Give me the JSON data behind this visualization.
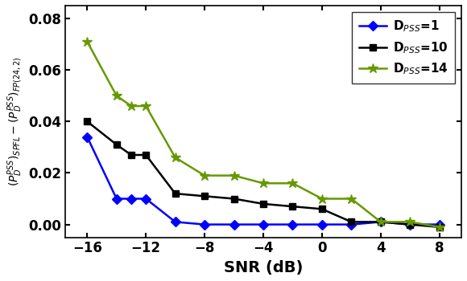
{
  "snr_d1": [
    -16,
    -14,
    -13,
    -12,
    -10,
    -8,
    -6,
    -4,
    -2,
    0,
    2,
    4,
    6,
    8
  ],
  "y_d1": [
    0.034,
    0.01,
    0.01,
    0.01,
    0.001,
    0.0,
    0.0,
    0.0,
    0.0,
    0.0,
    0.0,
    0.001,
    0.0,
    0.0
  ],
  "snr_d10": [
    -16,
    -14,
    -13,
    -12,
    -10,
    -8,
    -6,
    -4,
    -2,
    0,
    2,
    4,
    6,
    8
  ],
  "y_d10": [
    0.04,
    0.031,
    0.027,
    0.027,
    0.012,
    0.011,
    0.01,
    0.008,
    0.007,
    0.006,
    0.001,
    0.001,
    0.0,
    -0.001
  ],
  "snr_d14": [
    -16,
    -14,
    -13,
    -12,
    -10,
    -8,
    -6,
    -4,
    -2,
    0,
    2,
    4,
    6,
    8
  ],
  "y_d14": [
    0.071,
    0.05,
    0.046,
    0.046,
    0.026,
    0.019,
    0.019,
    0.016,
    0.016,
    0.01,
    0.01,
    0.001,
    0.001,
    -0.001
  ],
  "color_d1": "#0000ff",
  "color_d10": "#000000",
  "color_d14": "#669900",
  "xlabel": "SNR (dB)",
  "ylim": [
    -0.005,
    0.085
  ],
  "xlim": [
    -17.5,
    9.5
  ],
  "yticks": [
    0.0,
    0.02,
    0.04,
    0.06,
    0.08
  ],
  "xticks": [
    -16,
    -12,
    -8,
    -4,
    0,
    4,
    8
  ],
  "linewidth": 1.8,
  "markersize_diamond": 6,
  "markersize_square": 6,
  "markersize_star": 9,
  "legend_fontsize": 11,
  "tick_fontsize": 12,
  "xlabel_fontsize": 14,
  "ylabel_fontsize": 10,
  "figwidth": 5.8,
  "figheight": 3.5
}
